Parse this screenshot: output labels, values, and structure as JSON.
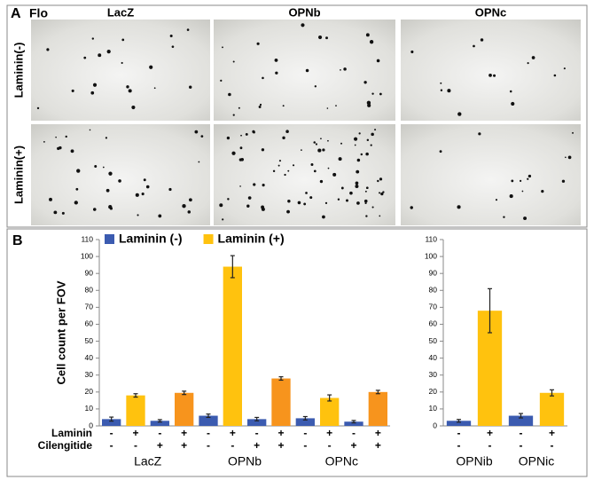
{
  "panel_a": {
    "label": "A",
    "corner": "Flo",
    "columns": [
      "LacZ",
      "OPNb",
      "OPNc"
    ],
    "rows": [
      "Laminin(-)",
      "Laminin(+)"
    ]
  },
  "panel_b": {
    "label": "B"
  },
  "chart_data": [
    {
      "type": "bar",
      "y_label": "Cell count per FOV",
      "legend": [
        {
          "name": "Laminin (-)",
          "color": "#3b5bb0"
        },
        {
          "name": "Laminin (+)",
          "color": "#ffc20e"
        }
      ],
      "groups": [
        "LacZ",
        "OPNb",
        "OPNc"
      ],
      "values": [
        4,
        18,
        3,
        19.5,
        6,
        94,
        4,
        28,
        4.5,
        16.5,
        2.5,
        20
      ],
      "errors": [
        1.2,
        1,
        0.7,
        1,
        1,
        6.5,
        1,
        1,
        1,
        1.8,
        0.7,
        1
      ],
      "colors": [
        "#3b5bb0",
        "#ffc20e",
        "#3b5bb0",
        "#f7941d",
        "#3b5bb0",
        "#ffc20e",
        "#3b5bb0",
        "#f7941d",
        "#3b5bb0",
        "#ffc20e",
        "#3b5bb0",
        "#f7941d"
      ],
      "sign_rows": [
        {
          "label": "Laminin",
          "signs": [
            "-",
            "+",
            "-",
            "+",
            "-",
            "+",
            "-",
            "+",
            "-",
            "+",
            "-",
            "+"
          ]
        },
        {
          "label": "Cilengitide",
          "signs": [
            "-",
            "-",
            "+",
            "+",
            "-",
            "-",
            "+",
            "+",
            "-",
            "-",
            "+",
            "+"
          ]
        }
      ],
      "ylim": [
        0,
        110
      ],
      "yticks": [
        0,
        10,
        20,
        30,
        40,
        50,
        60,
        70,
        80,
        90,
        100,
        110
      ]
    },
    {
      "type": "bar",
      "groups": [
        "OPNib",
        "OPNic"
      ],
      "values": [
        3,
        68,
        6,
        19.5
      ],
      "errors": [
        0.8,
        13,
        1.3,
        1.8
      ],
      "colors": [
        "#3b5bb0",
        "#ffc20e",
        "#3b5bb0",
        "#ffc20e"
      ],
      "sign_rows": [
        {
          "signs": [
            "-",
            "+",
            "-",
            "+"
          ]
        },
        {
          "signs": [
            "-",
            "-",
            "-",
            "-"
          ]
        }
      ],
      "ylim": [
        0,
        110
      ],
      "yticks": [
        0,
        10,
        20,
        30,
        40,
        50,
        60,
        70,
        80,
        90,
        100,
        110
      ]
    }
  ]
}
